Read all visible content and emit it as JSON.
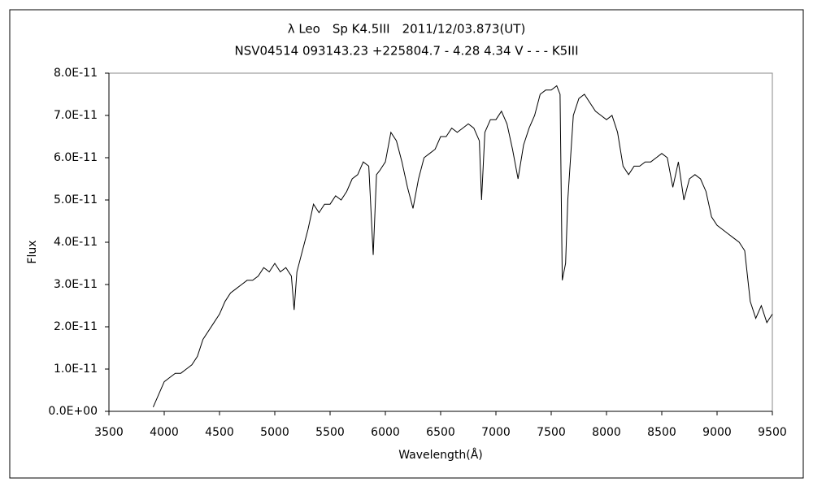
{
  "chart_data": {
    "type": "line",
    "title": "λ Leo　Sp K4.5III　2011/12/03.873(UT)",
    "subtitle": "NSV04514 093143.23 +225804.7 - 4.28 4.34 V - - - K5III",
    "x_label": "Wavelength(Å)",
    "y_label": "Flux",
    "color": "#000000",
    "xlim": [
      3500,
      9500
    ],
    "ylim": [
      0,
      8e-11
    ],
    "xticks": [
      3500,
      4000,
      4500,
      5000,
      5500,
      6000,
      6500,
      7000,
      7500,
      8000,
      8500,
      9000,
      9500
    ],
    "yticks": [
      {
        "value": 0,
        "label": "0.0E+00"
      },
      {
        "value": 1e-11,
        "label": "1.0E-11"
      },
      {
        "value": 2e-11,
        "label": "2.0E-11"
      },
      {
        "value": 3e-11,
        "label": "3.0E-11"
      },
      {
        "value": 4e-11,
        "label": "4.0E-11"
      },
      {
        "value": 5e-11,
        "label": "5.0E-11"
      },
      {
        "value": 6e-11,
        "label": "6.0E-11"
      },
      {
        "value": 7e-11,
        "label": "7.0E-11"
      },
      {
        "value": 8e-11,
        "label": "8.0E-11"
      }
    ],
    "x": [
      3900,
      3950,
      4000,
      4050,
      4100,
      4150,
      4200,
      4250,
      4300,
      4350,
      4400,
      4450,
      4500,
      4550,
      4600,
      4650,
      4700,
      4750,
      4800,
      4850,
      4900,
      4950,
      5000,
      5050,
      5100,
      5150,
      5175,
      5200,
      5250,
      5300,
      5350,
      5400,
      5450,
      5500,
      5550,
      5600,
      5650,
      5700,
      5750,
      5800,
      5850,
      5890,
      5920,
      5950,
      6000,
      6050,
      6100,
      6150,
      6200,
      6250,
      6300,
      6350,
      6400,
      6450,
      6500,
      6550,
      6600,
      6650,
      6700,
      6750,
      6800,
      6850,
      6870,
      6900,
      6950,
      7000,
      7050,
      7100,
      7150,
      7200,
      7250,
      7300,
      7350,
      7400,
      7450,
      7500,
      7550,
      7580,
      7600,
      7630,
      7650,
      7700,
      7750,
      7800,
      7850,
      7900,
      7950,
      8000,
      8050,
      8100,
      8150,
      8200,
      8250,
      8300,
      8350,
      8400,
      8450,
      8500,
      8550,
      8600,
      8650,
      8700,
      8750,
      8800,
      8850,
      8900,
      8950,
      9000,
      9050,
      9100,
      9150,
      9200,
      9250,
      9300,
      9350,
      9400,
      9450,
      9500
    ],
    "values": [
      1e-12,
      4e-12,
      7e-12,
      8e-12,
      9e-12,
      9e-12,
      1e-11,
      1.1e-11,
      1.3e-11,
      1.7e-11,
      1.9e-11,
      2.1e-11,
      2.3e-11,
      2.6e-11,
      2.8e-11,
      2.9e-11,
      3e-11,
      3.1e-11,
      3.1e-11,
      3.2e-11,
      3.4e-11,
      3.3e-11,
      3.5e-11,
      3.3e-11,
      3.4e-11,
      3.2e-11,
      2.4e-11,
      3.3e-11,
      3.8e-11,
      4.3e-11,
      4.9e-11,
      4.7e-11,
      4.9e-11,
      4.9e-11,
      5.1e-11,
      5e-11,
      5.2e-11,
      5.5e-11,
      5.6e-11,
      5.9e-11,
      5.8e-11,
      3.7e-11,
      5.6e-11,
      5.7e-11,
      5.9e-11,
      6.6e-11,
      6.4e-11,
      5.9e-11,
      5.3e-11,
      4.8e-11,
      5.5e-11,
      6e-11,
      6.1e-11,
      6.2e-11,
      6.5e-11,
      6.5e-11,
      6.7e-11,
      6.6e-11,
      6.7e-11,
      6.8e-11,
      6.7e-11,
      6.4e-11,
      5e-11,
      6.6e-11,
      6.9e-11,
      6.9e-11,
      7.1e-11,
      6.8e-11,
      6.2e-11,
      5.5e-11,
      6.3e-11,
      6.7e-11,
      7e-11,
      7.5e-11,
      7.6e-11,
      7.6e-11,
      7.7e-11,
      7.5e-11,
      3.1e-11,
      3.5e-11,
      5e-11,
      7e-11,
      7.4e-11,
      7.5e-11,
      7.3e-11,
      7.1e-11,
      7e-11,
      6.9e-11,
      7e-11,
      6.6e-11,
      5.8e-11,
      5.6e-11,
      5.8e-11,
      5.8e-11,
      5.9e-11,
      5.9e-11,
      6e-11,
      6.1e-11,
      6e-11,
      5.3e-11,
      5.9e-11,
      5e-11,
      5.5e-11,
      5.6e-11,
      5.5e-11,
      5.2e-11,
      4.6e-11,
      4.4e-11,
      4.3e-11,
      4.2e-11,
      4.1e-11,
      4e-11,
      3.8e-11,
      2.6e-11,
      2.2e-11,
      2.5e-11,
      2.1e-11,
      2.3e-11
    ]
  }
}
